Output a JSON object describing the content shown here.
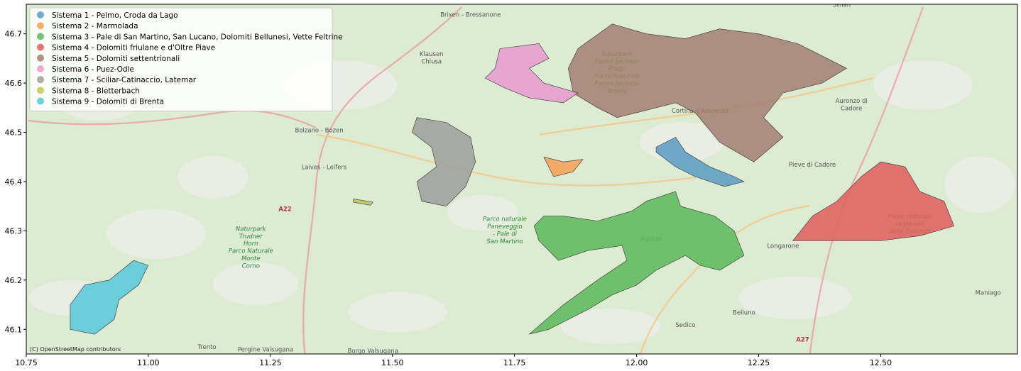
{
  "chart_data": {
    "type": "map",
    "xlim": [
      10.75,
      12.78
    ],
    "ylim": [
      46.05,
      46.76
    ],
    "x_ticks": [
      "10.75",
      "11.00",
      "11.25",
      "11.50",
      "11.75",
      "12.00",
      "12.25",
      "12.50"
    ],
    "x_tick_values": [
      10.75,
      11.0,
      11.25,
      11.5,
      11.75,
      12.0,
      12.25,
      12.5
    ],
    "y_ticks": [
      "46.1",
      "46.2",
      "46.3",
      "46.4",
      "46.5",
      "46.6",
      "46.7"
    ],
    "y_tick_values": [
      46.1,
      46.2,
      46.3,
      46.4,
      46.5,
      46.6,
      46.7
    ],
    "legend_position": "upper-left",
    "attribution": "(C) OpenStreetMap contributors",
    "series": [
      {
        "name": "Sistema 1 - Pelmo, Croda da Lago",
        "color": "#5b9ac4",
        "polygon": [
          [
            12.04,
            46.47
          ],
          [
            12.08,
            46.49
          ],
          [
            12.1,
            46.46
          ],
          [
            12.15,
            46.43
          ],
          [
            12.2,
            46.41
          ],
          [
            12.22,
            46.4
          ],
          [
            12.18,
            46.39
          ],
          [
            12.12,
            46.41
          ],
          [
            12.08,
            46.43
          ],
          [
            12.04,
            46.46
          ]
        ]
      },
      {
        "name": "Sistema 2 - Marmolada",
        "color": "#f7a055",
        "polygon": [
          [
            11.81,
            46.45
          ],
          [
            11.85,
            46.44
          ],
          [
            11.89,
            46.445
          ],
          [
            11.87,
            46.42
          ],
          [
            11.83,
            46.41
          ],
          [
            11.82,
            46.43
          ]
        ]
      },
      {
        "name": "Sistema 3 - Pale di San Martino, San Lucano, Dolomiti Bellunesi, Vette Feltrine",
        "color": "#5cb85c",
        "polygon": [
          [
            11.81,
            46.33
          ],
          [
            11.85,
            46.33
          ],
          [
            11.92,
            46.32
          ],
          [
            11.99,
            46.34
          ],
          [
            12.02,
            46.36
          ],
          [
            12.08,
            46.38
          ],
          [
            12.09,
            46.35
          ],
          [
            12.16,
            46.33
          ],
          [
            12.2,
            46.3
          ],
          [
            12.22,
            46.25
          ],
          [
            12.17,
            46.22
          ],
          [
            12.13,
            46.23
          ],
          [
            12.1,
            46.25
          ],
          [
            12.08,
            46.24
          ],
          [
            12.04,
            46.22
          ],
          [
            12.0,
            46.19
          ],
          [
            11.95,
            46.17
          ],
          [
            11.9,
            46.14
          ],
          [
            11.82,
            46.1
          ],
          [
            11.78,
            46.09
          ],
          [
            11.85,
            46.15
          ],
          [
            11.92,
            46.2
          ],
          [
            11.98,
            46.24
          ],
          [
            11.97,
            46.27
          ],
          [
            11.9,
            46.26
          ],
          [
            11.84,
            46.24
          ],
          [
            11.8,
            46.28
          ],
          [
            11.79,
            46.31
          ]
        ]
      },
      {
        "name": "Sistema 4 - Dolomiti friulane e d'Oltre Piave",
        "color": "#e15d5d",
        "polygon": [
          [
            12.32,
            46.28
          ],
          [
            12.36,
            46.33
          ],
          [
            12.41,
            46.36
          ],
          [
            12.46,
            46.41
          ],
          [
            12.5,
            46.44
          ],
          [
            12.55,
            46.43
          ],
          [
            12.58,
            46.38
          ],
          [
            12.63,
            46.36
          ],
          [
            12.65,
            46.31
          ],
          [
            12.58,
            46.29
          ],
          [
            12.5,
            46.28
          ],
          [
            12.42,
            46.28
          ],
          [
            12.36,
            46.28
          ]
        ]
      },
      {
        "name": "Sistema 5 - Dolomiti settentrionali",
        "color": "#a37f72",
        "polygon": [
          [
            11.95,
            46.72
          ],
          [
            12.02,
            46.7
          ],
          [
            12.1,
            46.69
          ],
          [
            12.17,
            46.71
          ],
          [
            12.25,
            46.7
          ],
          [
            12.33,
            46.68
          ],
          [
            12.43,
            46.63
          ],
          [
            12.38,
            46.6
          ],
          [
            12.3,
            46.58
          ],
          [
            12.26,
            46.53
          ],
          [
            12.3,
            46.49
          ],
          [
            12.24,
            46.44
          ],
          [
            12.17,
            46.48
          ],
          [
            12.12,
            46.54
          ],
          [
            12.08,
            46.56
          ],
          [
            12.0,
            46.54
          ],
          [
            11.96,
            46.53
          ],
          [
            11.92,
            46.55
          ],
          [
            11.87,
            46.58
          ],
          [
            11.86,
            46.63
          ],
          [
            11.88,
            46.67
          ]
        ]
      },
      {
        "name": "Sistema 6 - Puez-Odle",
        "color": "#e79ad0",
        "polygon": [
          [
            11.72,
            46.67
          ],
          [
            11.8,
            46.68
          ],
          [
            11.82,
            46.65
          ],
          [
            11.78,
            46.63
          ],
          [
            11.81,
            46.6
          ],
          [
            11.88,
            46.58
          ],
          [
            11.85,
            46.56
          ],
          [
            11.78,
            46.57
          ],
          [
            11.73,
            46.59
          ],
          [
            11.69,
            46.61
          ],
          [
            11.71,
            46.63
          ]
        ]
      },
      {
        "name": "Sistema 7 - Sciliar-Catinaccio, Latemar",
        "color": "#9e9e9e",
        "polygon": [
          [
            11.55,
            46.53
          ],
          [
            11.61,
            46.52
          ],
          [
            11.66,
            46.49
          ],
          [
            11.67,
            46.44
          ],
          [
            11.65,
            46.39
          ],
          [
            11.61,
            46.35
          ],
          [
            11.56,
            46.36
          ],
          [
            11.55,
            46.4
          ],
          [
            11.59,
            46.43
          ],
          [
            11.58,
            46.47
          ],
          [
            11.54,
            46.5
          ]
        ]
      },
      {
        "name": "Sistema 8 - Bletterbach",
        "color": "#c3c754",
        "polygon": [
          [
            11.42,
            46.365
          ],
          [
            11.46,
            46.358
          ],
          [
            11.455,
            46.352
          ],
          [
            11.42,
            46.358
          ]
        ]
      },
      {
        "name": "Sistema 9 - Dolomiti di Brenta",
        "color": "#56c8d8",
        "polygon": [
          [
            10.87,
            46.19
          ],
          [
            10.92,
            46.2
          ],
          [
            10.97,
            46.24
          ],
          [
            11.0,
            46.23
          ],
          [
            10.98,
            46.19
          ],
          [
            10.94,
            46.16
          ],
          [
            10.93,
            46.12
          ],
          [
            10.89,
            46.09
          ],
          [
            10.84,
            46.1
          ],
          [
            10.84,
            46.15
          ]
        ]
      }
    ],
    "basemap_labels": [
      {
        "text": "Brixen - Bressanone",
        "lon": 11.66,
        "lat": 46.735,
        "kind": "town"
      },
      {
        "text": "Klausen",
        "lon": 11.58,
        "lat": 46.655,
        "kind": "town"
      },
      {
        "text": "Chiusa",
        "lon": 11.58,
        "lat": 46.64,
        "kind": "town"
      },
      {
        "text": "Bolzano - Bozen",
        "lon": 11.35,
        "lat": 46.5,
        "kind": "town"
      },
      {
        "text": "Laives - Leifers",
        "lon": 11.36,
        "lat": 46.425,
        "kind": "town"
      },
      {
        "text": "A22",
        "lon": 11.28,
        "lat": 46.34,
        "kind": "road"
      },
      {
        "text": "Cortina d'Ampezzo",
        "lon": 12.13,
        "lat": 46.54,
        "kind": "town"
      },
      {
        "text": "Auronzo di",
        "lon": 12.44,
        "lat": 46.56,
        "kind": "town"
      },
      {
        "text": "Cadore",
        "lon": 12.44,
        "lat": 46.545,
        "kind": "town"
      },
      {
        "text": "Pieve di Cadore",
        "lon": 12.36,
        "lat": 46.43,
        "kind": "town"
      },
      {
        "text": "Longarone",
        "lon": 12.3,
        "lat": 46.265,
        "kind": "town"
      },
      {
        "text": "Agordo",
        "lon": 12.03,
        "lat": 46.28,
        "kind": "town"
      },
      {
        "text": "Belluno",
        "lon": 12.22,
        "lat": 46.13,
        "kind": "town"
      },
      {
        "text": "Sedico",
        "lon": 12.1,
        "lat": 46.105,
        "kind": "town"
      },
      {
        "text": "Trento",
        "lon": 11.12,
        "lat": 46.06,
        "kind": "town"
      },
      {
        "text": "Pergine Valsugana",
        "lon": 11.24,
        "lat": 46.055,
        "kind": "town"
      },
      {
        "text": "Borgo Valsugana",
        "lon": 11.46,
        "lat": 46.052,
        "kind": "town"
      },
      {
        "text": "Sillian",
        "lon": 12.42,
        "lat": 46.755,
        "kind": "town"
      },
      {
        "text": "Maniago",
        "lon": 12.72,
        "lat": 46.17,
        "kind": "town"
      },
      {
        "text": "A27",
        "lon": 12.34,
        "lat": 46.075,
        "kind": "road"
      },
      {
        "text": "Parco naturale",
        "lon": 11.73,
        "lat": 46.32,
        "kind": "park"
      },
      {
        "text": "Paneveggio",
        "lon": 11.73,
        "lat": 46.305,
        "kind": "park"
      },
      {
        "text": "- Pale di",
        "lon": 11.73,
        "lat": 46.29,
        "kind": "park"
      },
      {
        "text": "San Martino",
        "lon": 11.73,
        "lat": 46.275,
        "kind": "park"
      },
      {
        "text": "Parco naturale",
        "lon": 12.56,
        "lat": 46.325,
        "kind": "park"
      },
      {
        "text": "regionale",
        "lon": 12.56,
        "lat": 46.31,
        "kind": "park"
      },
      {
        "text": "delle Dolomiti",
        "lon": 12.56,
        "lat": 46.295,
        "kind": "park"
      },
      {
        "text": "Naturpark",
        "lon": 11.96,
        "lat": 46.655,
        "kind": "park"
      },
      {
        "text": "Fanes-Sennes-",
        "lon": 11.96,
        "lat": 46.64,
        "kind": "park"
      },
      {
        "text": "Prags",
        "lon": 11.96,
        "lat": 46.625,
        "kind": "park"
      },
      {
        "text": "Parco Naturale",
        "lon": 11.96,
        "lat": 46.61,
        "kind": "park"
      },
      {
        "text": "Fanes-Sennes-",
        "lon": 11.96,
        "lat": 46.595,
        "kind": "park"
      },
      {
        "text": "Braies",
        "lon": 11.96,
        "lat": 46.58,
        "kind": "park"
      },
      {
        "text": "Naturpark",
        "lon": 11.21,
        "lat": 46.3,
        "kind": "park"
      },
      {
        "text": "Trudner",
        "lon": 11.21,
        "lat": 46.285,
        "kind": "park"
      },
      {
        "text": "Horn",
        "lon": 11.21,
        "lat": 46.27,
        "kind": "park"
      },
      {
        "text": "Parco Naturale",
        "lon": 11.21,
        "lat": 46.255,
        "kind": "park"
      },
      {
        "text": "Monte",
        "lon": 11.21,
        "lat": 46.24,
        "kind": "park"
      },
      {
        "text": "Corno",
        "lon": 11.21,
        "lat": 46.225,
        "kind": "park"
      }
    ]
  }
}
